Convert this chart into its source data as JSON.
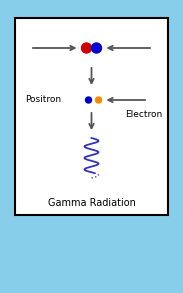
{
  "bg_color": "#87CEEB",
  "box_color": "#ffffff",
  "box_edge": "#000000",
  "proton_red": "#cc0000",
  "proton_blue": "#0000dd",
  "positron_blue": "#0000cc",
  "positron_orange": "#ff8800",
  "wave_color_solid": "#3333bb",
  "wave_color_dotted": "#6633cc",
  "arrow_color": "#555555",
  "label_positron": "Positron",
  "label_electron": "Electron",
  "label_gamma": "Gamma Radiation",
  "figsize": [
    1.83,
    2.93
  ],
  "dpi": 100
}
